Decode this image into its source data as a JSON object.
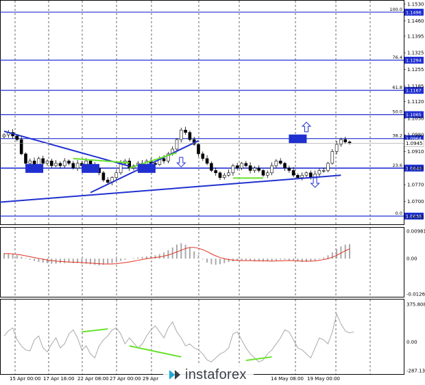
{
  "chart_data": [
    {
      "type": "candlestick",
      "price_axis": {
        "range": [
          1.0615,
          1.153
        ],
        "ticks": [
          "1.1530",
          "1.1460",
          "1.1395",
          "1.1325",
          "1.1255",
          "1.1185",
          "1.1120",
          "1.1050",
          "1.0980",
          "1.0910",
          "1.0840",
          "1.0770",
          "1.0700",
          "1.0635"
        ],
        "current_price": "1.0945"
      },
      "time_axis_labels": [
        "15 Apr 00:00",
        "17 Apr 16:00",
        "22 Apr 08:00",
        "27 Apr 00:00",
        "29 Apr",
        "14 May 08:00",
        "19 May 00:00"
      ],
      "fib_levels": [
        {
          "label": "100.0",
          "price": "1.1496",
          "value": 1.1496
        },
        {
          "label": "76.4",
          "price": "1.1294",
          "value": 1.1294
        },
        {
          "label": "61.8",
          "price": "1.1167",
          "value": 1.1167
        },
        {
          "label": "50.0",
          "price": "1.1065",
          "value": 1.1065
        },
        {
          "label": "38.2",
          "price": "1.0964",
          "value": 1.0964
        },
        {
          "label": "23.6",
          "price": "1.0840",
          "value": 1.084
        },
        {
          "label": "0.0",
          "price": "1.0638",
          "value": 1.0638
        }
      ],
      "close_series": [
        1.098,
        1.099,
        1.0975,
        1.096,
        1.09,
        1.086,
        1.087,
        1.0855,
        1.088,
        1.086,
        1.087,
        1.085,
        1.086,
        1.085,
        1.087,
        1.086,
        1.084,
        1.086,
        1.085,
        1.087,
        1.0855,
        1.084,
        1.082,
        1.079,
        1.078,
        1.08,
        1.082,
        1.086,
        1.087,
        1.084,
        1.085,
        1.086,
        1.085,
        1.087,
        1.086,
        1.0855,
        1.088,
        1.087,
        1.09,
        1.092,
        1.096,
        1.1,
        1.099,
        1.096,
        1.094,
        1.09,
        1.088,
        1.086,
        1.083,
        1.082,
        1.08,
        1.081,
        1.082,
        1.085,
        1.084,
        1.086,
        1.085,
        1.083,
        1.084,
        1.083,
        1.081,
        1.082,
        1.085,
        1.087,
        1.086,
        1.084,
        1.083,
        1.081,
        1.08,
        1.081,
        1.082,
        1.08,
        1.0815,
        1.083,
        1.083,
        1.086,
        1.091,
        1.094,
        1.096,
        1.095,
        1.0945
      ],
      "trend_lines": [
        {
          "color": "#1f2fd0",
          "from": {
            "i": 0,
            "v": 1.0995
          },
          "to": {
            "i": 29,
            "v": 1.0848
          }
        },
        {
          "color": "#1f2fd0",
          "from": {
            "i": 20,
            "v": 1.0737
          },
          "to": {
            "i": 45,
            "v": 1.0955
          }
        },
        {
          "color": "#1f2fd0",
          "from": {
            "i": -2,
            "v": 1.0695
          },
          "to": {
            "i": 78,
            "v": 1.081
          }
        }
      ],
      "divergence_lines": [
        {
          "color": "#66e22a",
          "from": {
            "i": 16,
            "v": 1.088
          },
          "to": {
            "i": 29,
            "v": 1.0862
          }
        },
        {
          "color": "#66e22a",
          "from": {
            "i": 29,
            "v": 1.084
          },
          "to": {
            "i": 40,
            "v": 1.0905
          }
        },
        {
          "color": "#66e22a",
          "from": {
            "i": 53,
            "v": 1.0798
          },
          "to": {
            "i": 60,
            "v": 1.0798
          }
        }
      ],
      "arrows": [
        {
          "dir": "up",
          "i": 70,
          "v": 1.101
        },
        {
          "dir": "down",
          "i": 41,
          "v": 1.0868
        },
        {
          "dir": "down",
          "i": 72,
          "v": 1.0782
        }
      ],
      "highlight_boxes": [
        {
          "i": 7,
          "v": 1.084
        },
        {
          "i": 20,
          "v": 1.084
        },
        {
          "i": 33,
          "v": 1.084
        },
        {
          "i": 68,
          "v": 1.0964
        }
      ]
    },
    {
      "type": "histogram",
      "indicator": "MACD",
      "axis_labels": [
        "0.00981",
        "0.00",
        "-0.01263"
      ],
      "range": [
        -0.01263,
        0.00981
      ],
      "values": [
        0.002,
        0.0018,
        0.0016,
        0.0012,
        0.0006,
        0.0002,
        -0.0004,
        -0.0008,
        -0.0012,
        -0.0014,
        -0.0016,
        -0.0018,
        -0.0018,
        -0.0016,
        -0.0016,
        -0.0014,
        -0.0016,
        -0.0016,
        -0.0018,
        -0.0018,
        -0.002,
        -0.0022,
        -0.0024,
        -0.0022,
        -0.002,
        -0.0016,
        -0.0012,
        -0.0008,
        -0.0004,
        0.0,
        0.0002,
        0.0004,
        0.0006,
        0.0008,
        0.001,
        0.0012,
        0.0016,
        0.0022,
        0.003,
        0.004,
        0.005,
        0.0055,
        0.005,
        0.004,
        0.0026,
        0.0012,
        -0.0002,
        -0.0014,
        -0.002,
        -0.0022,
        -0.002,
        -0.0016,
        -0.0012,
        -0.001,
        -0.0008,
        -0.0006,
        -0.0006,
        -0.0008,
        -0.0008,
        -0.0008,
        -0.001,
        -0.001,
        -0.0008,
        -0.0006,
        -0.0004,
        -0.0004,
        -0.0006,
        -0.0008,
        -0.001,
        -0.0012,
        -0.0012,
        -0.0008,
        -0.0006,
        -0.0002,
        0.0004,
        0.0012,
        0.0022,
        0.0034,
        0.0044,
        0.005,
        0.0052
      ],
      "signal": [
        0.0018,
        0.0018,
        0.0017,
        0.0015,
        0.0013,
        0.001,
        0.0007,
        0.0004,
        0.0001,
        -0.0002,
        -0.0005,
        -0.0007,
        -0.0009,
        -0.001,
        -0.0011,
        -0.0012,
        -0.0013,
        -0.0013,
        -0.0014,
        -0.0015,
        -0.0016,
        -0.0017,
        -0.0018,
        -0.0019,
        -0.0019,
        -0.0019,
        -0.0018,
        -0.0016,
        -0.0014,
        -0.0012,
        -0.0009,
        -0.0006,
        -0.0003,
        0.0,
        0.0002,
        0.0004,
        0.0006,
        0.0009,
        0.0013,
        0.0018,
        0.0024,
        0.003,
        0.0036,
        0.004,
        0.004,
        0.0037,
        0.0032,
        0.0025,
        0.0017,
        0.001,
        0.0004,
        0.0,
        -0.0003,
        -0.0005,
        -0.0006,
        -0.0007,
        -0.0007,
        -0.0007,
        -0.0008,
        -0.0008,
        -0.0008,
        -0.0008,
        -0.0009,
        -0.0008,
        -0.0008,
        -0.0007,
        -0.0007,
        -0.0007,
        -0.0008,
        -0.0009,
        -0.0009,
        -0.0009,
        -0.0008,
        -0.0006,
        -0.0003,
        0.0,
        0.0005,
        0.0012,
        0.002,
        0.0028,
        0.0035
      ]
    },
    {
      "type": "line",
      "indicator": "CCI",
      "axis_labels": [
        "375.8087",
        "0.00",
        "-287.1357"
      ],
      "range": [
        -287.1357,
        375.8087
      ],
      "values": [
        60,
        110,
        140,
        20,
        -40,
        -80,
        -90,
        20,
        60,
        -60,
        -100,
        -20,
        40,
        -60,
        -20,
        80,
        120,
        40,
        -80,
        -40,
        -120,
        -160,
        -40,
        20,
        60,
        120,
        140,
        80,
        -20,
        40,
        -10,
        -60,
        -20,
        60,
        120,
        160,
        100,
        40,
        140,
        200,
        100,
        40,
        -40,
        -20,
        -60,
        -80,
        -120,
        -180,
        -200,
        -160,
        -120,
        -100,
        -60,
        80,
        100,
        20,
        -60,
        -120,
        -160,
        -200,
        -180,
        -120,
        -80,
        -20,
        40,
        120,
        100,
        20,
        -60,
        -80,
        -120,
        -160,
        -60,
        40,
        20,
        -20,
        100,
        280,
        180,
        110,
        90,
        100
      ],
      "divergence_lines": [
        {
          "color": "#66e22a",
          "from": {
            "i": 18,
            "v": 100
          },
          "to": {
            "i": 24,
            "v": 130
          }
        },
        {
          "color": "#66e22a",
          "from": {
            "i": 29,
            "v": -40
          },
          "to": {
            "i": 41,
            "v": -150
          }
        },
        {
          "color": "#66e22a",
          "from": {
            "i": 56,
            "v": -185
          },
          "to": {
            "i": 62,
            "v": -150
          }
        }
      ]
    }
  ],
  "watermark": {
    "text": "instaforex",
    "color": "#3a3f47"
  }
}
